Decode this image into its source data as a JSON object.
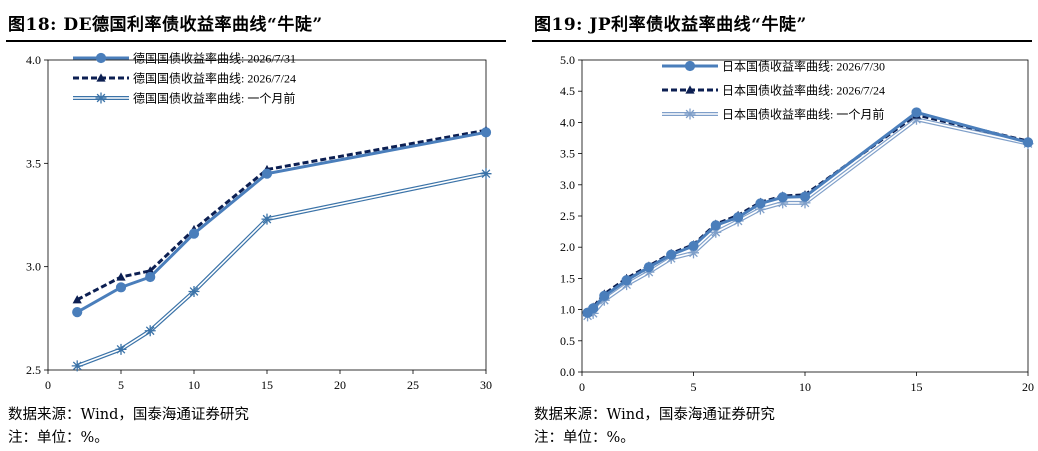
{
  "charts": {
    "left": {
      "title": "图18:  DE德国利率债收益率曲线“牛陡”",
      "source": "数据来源：Wind，国泰海通证券研究",
      "note": "注：单位：%。",
      "chart_data": {
        "type": "line",
        "title": "图18:  DE德国利率债收益率曲线“牛陡”",
        "xlim": [
          0,
          30
        ],
        "ylim": [
          2.5,
          4.0
        ],
        "x_ticks": [
          0,
          5,
          10,
          15,
          20,
          25,
          30
        ],
        "y_ticks": [
          2.5,
          3.0,
          3.5,
          4.0
        ],
        "x_tick_labels": [
          "0",
          "5",
          "10",
          "15",
          "20",
          "25",
          "30"
        ],
        "y_tick_labels": [
          "2.5",
          "3.0",
          "3.5",
          "4.0"
        ],
        "legend_position": "top-left",
        "grid": false,
        "series": [
          {
            "name": "德国国债收益率曲线: 2026/7/31",
            "style": "solid-circle",
            "color": "#4a7ebb",
            "x": [
              2,
              5,
              7,
              10,
              15,
              30
            ],
            "y": [
              2.78,
              2.9,
              2.95,
              3.16,
              3.45,
              3.65
            ]
          },
          {
            "name": "德国国债收益率曲线: 2026/7/24",
            "style": "dash-triangle",
            "color": "#0c1f52",
            "x": [
              2,
              5,
              7,
              10,
              15,
              30
            ],
            "y": [
              2.84,
              2.95,
              2.98,
              3.18,
              3.47,
              3.66
            ]
          },
          {
            "name": "德国国债收益率曲线: 一个月前",
            "style": "double-star",
            "color": "#3b73a8",
            "x": [
              2,
              5,
              7,
              10,
              15,
              30
            ],
            "y": [
              2.52,
              2.6,
              2.69,
              2.88,
              3.23,
              3.45
            ]
          }
        ]
      }
    },
    "right": {
      "title": "图19:  JP利率债收益率曲线“牛陡”",
      "source": "数据来源：Wind，国泰海通证券研究",
      "note": "注：单位：%。",
      "chart_data": {
        "type": "line",
        "title": "图19:  JP利率债收益率曲线“牛陡”",
        "xlim": [
          0,
          20
        ],
        "ylim": [
          0.0,
          5.0
        ],
        "x_ticks": [
          0,
          5,
          10,
          15,
          20
        ],
        "y_ticks": [
          0.0,
          0.5,
          1.0,
          1.5,
          2.0,
          2.5,
          3.0,
          3.5,
          4.0,
          4.5,
          5.0
        ],
        "x_tick_labels": [
          "0",
          "5",
          "10",
          "15",
          "20"
        ],
        "y_tick_labels": [
          "0.0",
          "0.5",
          "1.0",
          "1.5",
          "2.0",
          "2.5",
          "3.0",
          "3.5",
          "4.0",
          "4.5",
          "5.0"
        ],
        "legend_position": "top-left",
        "grid": false,
        "series": [
          {
            "name": "日本国债收益率曲线: 2026/7/30",
            "style": "solid-circle",
            "color": "#4a7ebb",
            "x": [
              0.25,
              0.5,
              1,
              2,
              3,
              4,
              5,
              6,
              7,
              8,
              9,
              10,
              15,
              20
            ],
            "y": [
              0.95,
              1.02,
              1.22,
              1.47,
              1.68,
              1.88,
              2.02,
              2.35,
              2.48,
              2.7,
              2.8,
              2.81,
              4.16,
              3.68
            ]
          },
          {
            "name": "日本国债收益率曲线: 2026/7/24",
            "style": "dash-triangle",
            "color": "#0c1f52",
            "x": [
              0.25,
              0.5,
              1,
              2,
              3,
              4,
              5,
              6,
              7,
              8,
              9,
              10,
              15,
              20
            ],
            "y": [
              0.96,
              1.04,
              1.25,
              1.5,
              1.7,
              1.9,
              2.04,
              2.37,
              2.51,
              2.72,
              2.82,
              2.84,
              4.12,
              3.7
            ]
          },
          {
            "name": "日本国债收益率曲线: 一个月前",
            "style": "double-star",
            "color": "#7f9fc9",
            "x": [
              0.25,
              0.5,
              1,
              2,
              3,
              4,
              5,
              6,
              7,
              8,
              9,
              10,
              15,
              20
            ],
            "y": [
              0.9,
              0.94,
              1.15,
              1.4,
              1.6,
              1.82,
              1.91,
              2.24,
              2.42,
              2.61,
              2.71,
              2.71,
              4.05,
              3.66
            ]
          }
        ]
      }
    }
  }
}
